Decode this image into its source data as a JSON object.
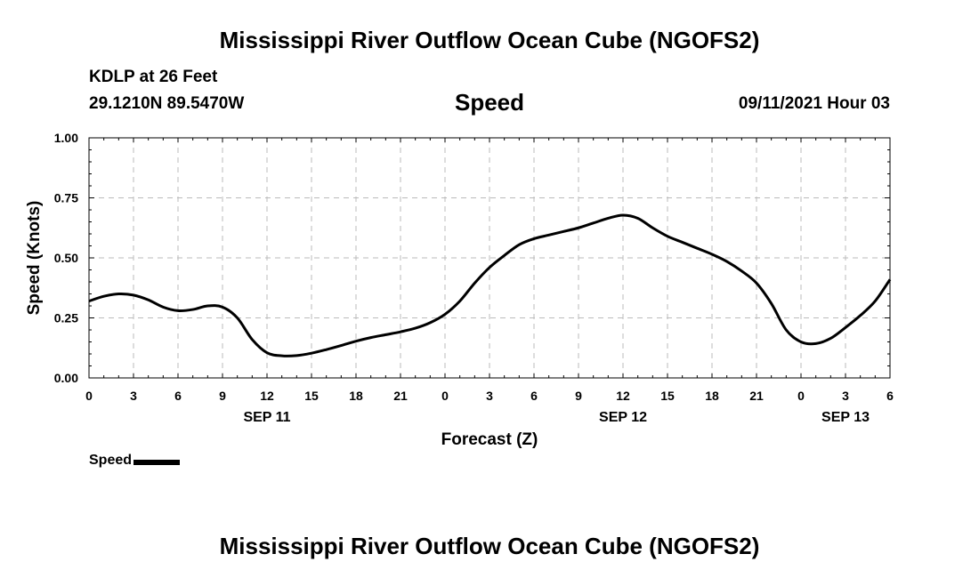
{
  "header": {
    "title": "Mississippi River Outflow Ocean Cube (NGOFS2)",
    "station": "KDLP at 26 Feet",
    "coordinates": "29.1210N  89.5470W",
    "variable": "Speed",
    "timestamp": "09/11/2021 Hour 03"
  },
  "footer": {
    "title": "Mississippi River Outflow Ocean Cube (NGOFS2)"
  },
  "legend": {
    "label": "Speed"
  },
  "colors": {
    "line": "#000000",
    "grid": "#bbbbbb"
  },
  "chart_data": {
    "type": "line",
    "xlabel": "Forecast (Z)",
    "ylabel": "Speed (Knots)",
    "ylim": [
      0,
      1
    ],
    "yticks": [
      "0.00",
      "0.25",
      "0.50",
      "0.75",
      "1.00"
    ],
    "xlim_hours": [
      0,
      54
    ],
    "xtick_labels": [
      "0",
      "3",
      "6",
      "9",
      "12",
      "15",
      "18",
      "21",
      "0",
      "3",
      "6",
      "9",
      "12",
      "15",
      "18",
      "21",
      "0",
      "3",
      "6"
    ],
    "date_labels": [
      {
        "label": "SEP 11",
        "hour": 12
      },
      {
        "label": "SEP 12",
        "hour": 36
      },
      {
        "label": "SEP 13",
        "hour": 51
      }
    ],
    "grid": true,
    "series": [
      {
        "name": "Speed",
        "x": [
          0,
          1,
          2,
          3,
          4,
          5,
          6,
          7,
          8,
          9,
          10,
          11,
          12,
          13,
          14,
          15,
          16,
          17,
          18,
          19,
          20,
          21,
          22,
          23,
          24,
          25,
          26,
          27,
          28,
          29,
          30,
          31,
          32,
          33,
          34,
          35,
          36,
          37,
          38,
          39,
          40,
          41,
          42,
          43,
          44,
          45,
          46,
          47,
          48,
          49,
          50,
          51,
          52,
          53,
          54
        ],
        "y": [
          0.32,
          0.34,
          0.35,
          0.345,
          0.325,
          0.295,
          0.28,
          0.285,
          0.3,
          0.295,
          0.25,
          0.16,
          0.105,
          0.092,
          0.093,
          0.103,
          0.118,
          0.135,
          0.153,
          0.168,
          0.18,
          0.192,
          0.207,
          0.23,
          0.265,
          0.32,
          0.395,
          0.46,
          0.51,
          0.555,
          0.58,
          0.595,
          0.61,
          0.625,
          0.645,
          0.665,
          0.678,
          0.665,
          0.625,
          0.59,
          0.565,
          0.54,
          0.515,
          0.485,
          0.445,
          0.395,
          0.31,
          0.2,
          0.15,
          0.143,
          0.165,
          0.21,
          0.26,
          0.32,
          0.41
        ]
      }
    ]
  }
}
